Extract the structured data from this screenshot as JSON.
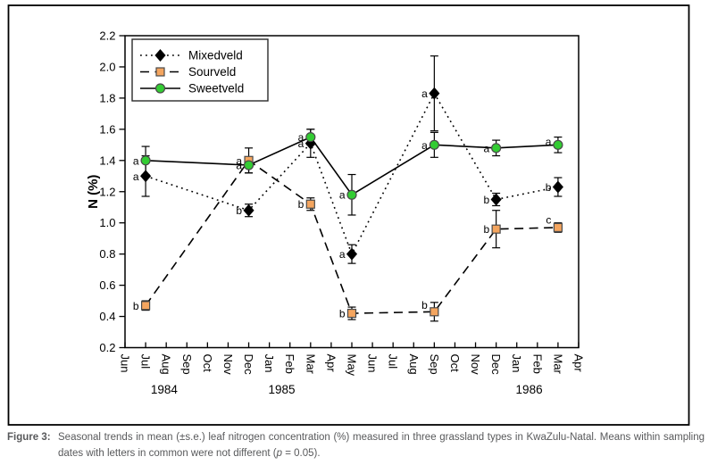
{
  "figure": {
    "caption_label": "Figure 3:",
    "caption_line1": "Seasonal trends in mean (±s.e.) leaf nitrogen concentration (%) measured in three grassland types in KwaZulu-Natal. Means within sampling",
    "caption_line2_pre": "dates with letters in common were not different (",
    "caption_line2_italic": "p",
    "caption_line2_post": " = 0.05)."
  },
  "chart_data": {
    "type": "line",
    "title": "",
    "xlabel": "",
    "ylabel": "N (%)",
    "ylim": [
      0.2,
      2.2
    ],
    "ytick_step": 0.2,
    "grid": false,
    "x_tick_labels": [
      "Jun",
      "Jul",
      "Aug",
      "Sep",
      "Oct",
      "Nov",
      "Dec",
      "Jan",
      "Feb",
      "Mar",
      "Apr",
      "May",
      "Jun",
      "Jul",
      "Aug",
      "Sep",
      "Oct",
      "Nov",
      "Dec",
      "Jan",
      "Feb",
      "Mar",
      "Apr"
    ],
    "year_labels": [
      {
        "text": "1984",
        "month_index": 1.9
      },
      {
        "text": "1985",
        "month_index": 7.6
      },
      {
        "text": "1986",
        "month_index": 19.6
      }
    ],
    "legend": {
      "position": "top-left",
      "entries": [
        "Mixedveld",
        "Sourveld",
        "Sweetveld"
      ]
    },
    "series": [
      {
        "name": "Mixedveld",
        "marker": "diamond",
        "marker_color": "#000000",
        "marker_edge": "#000000",
        "line_style": "dotted",
        "line_color": "#000000",
        "points": [
          {
            "month_index": 1,
            "x_label": "Jul 1984",
            "value": 1.3,
            "se": 0.13,
            "letter": "a"
          },
          {
            "month_index": 6,
            "x_label": "Dec 1984",
            "value": 1.08,
            "se": 0.04,
            "letter": "b"
          },
          {
            "month_index": 9,
            "x_label": "Mar 1985",
            "value": 1.51,
            "se": 0.09,
            "letter": "a"
          },
          {
            "month_index": 11,
            "x_label": "May 1985",
            "value": 0.8,
            "se": 0.06,
            "letter": "a"
          },
          {
            "month_index": 15,
            "x_label": "Sep 1985",
            "value": 1.83,
            "se": 0.24,
            "letter": "a"
          },
          {
            "month_index": 18,
            "x_label": "Dec 1985",
            "value": 1.15,
            "se": 0.04,
            "letter": "b"
          },
          {
            "month_index": 21,
            "x_label": "Mar 1986",
            "value": 1.23,
            "se": 0.06,
            "letter": "b"
          }
        ]
      },
      {
        "name": "Sourveld",
        "marker": "square",
        "marker_color": "#F4A55F",
        "marker_edge": "#4a4a4a",
        "line_style": "dashed",
        "line_color": "#000000",
        "points": [
          {
            "month_index": 1,
            "x_label": "Jul 1984",
            "value": 0.47,
            "se": 0.03,
            "letter": "b"
          },
          {
            "month_index": 6,
            "x_label": "Dec 1984",
            "value": 1.4,
            "se": 0.08,
            "letter": "a"
          },
          {
            "month_index": 9,
            "x_label": "Mar 1985",
            "value": 1.12,
            "se": 0.04,
            "letter": "b"
          },
          {
            "month_index": 11,
            "x_label": "May 1985",
            "value": 0.42,
            "se": 0.04,
            "letter": "b"
          },
          {
            "month_index": 15,
            "x_label": "Sep 1985",
            "value": 0.43,
            "se": 0.06,
            "letter": "b",
            "letter_dy": -8
          },
          {
            "month_index": 18,
            "x_label": "Dec 1985",
            "value": 0.96,
            "se": 0.12,
            "letter": "b"
          },
          {
            "month_index": 21,
            "x_label": "Mar 1986",
            "value": 0.97,
            "se": 0.03,
            "letter": "c",
            "letter_dy": -9
          }
        ]
      },
      {
        "name": "Sweetveld",
        "marker": "circle",
        "marker_color": "#33CC33",
        "marker_edge": "#4a4a4a",
        "line_style": "solid",
        "line_color": "#000000",
        "points": [
          {
            "month_index": 1,
            "x_label": "Jul 1984",
            "value": 1.4,
            "se": 0.09,
            "letter": "a"
          },
          {
            "month_index": 6,
            "x_label": "Dec 1984",
            "value": 1.37,
            "se": 0.05,
            "letter": "a"
          },
          {
            "month_index": 9,
            "x_label": "Mar 1985",
            "value": 1.55,
            "se": 0.05,
            "letter": "a"
          },
          {
            "month_index": 11,
            "x_label": "May 1985",
            "value": 1.18,
            "se": 0.13,
            "letter": "a"
          },
          {
            "month_index": 15,
            "x_label": "Sep 1985",
            "value": 1.5,
            "se": 0.08,
            "letter": "a"
          },
          {
            "month_index": 18,
            "x_label": "Dec 1985",
            "value": 1.48,
            "se": 0.05,
            "letter": "a"
          },
          {
            "month_index": 21,
            "x_label": "Mar 1986",
            "value": 1.5,
            "se": 0.05,
            "letter": "a",
            "letter_dy": -4
          }
        ]
      }
    ]
  }
}
